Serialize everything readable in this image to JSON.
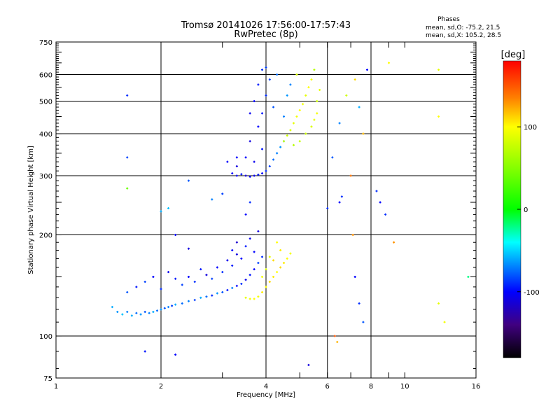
{
  "chart_data": {
    "type": "scatter",
    "title": "Tromsø 20141026 17:56:00-17:57:43",
    "subtitle": "RwPretec (8p)",
    "xlabel": "Frequency [MHz]",
    "ylabel": "Stationary phase Virtual Height [km]",
    "x_scale": "log2",
    "y_scale": "log",
    "xlim": [
      1,
      16
    ],
    "ylim": [
      75,
      750
    ],
    "x_ticks": [
      1,
      2,
      4,
      6,
      8,
      10,
      16
    ],
    "x_tick_labels": [
      "1",
      "2",
      "4",
      "6",
      "8",
      "10",
      "16"
    ],
    "x_minor_ticks": [
      3,
      5,
      7,
      9
    ],
    "y_ticks": [
      75,
      100,
      200,
      300,
      400,
      500,
      600,
      750
    ],
    "y_tick_labels": [
      "75",
      "100",
      "200",
      "300",
      "400",
      "500",
      "600",
      "750"
    ],
    "grid_x": [
      2,
      4,
      6,
      8
    ],
    "grid_y": [
      100,
      200,
      300,
      400,
      500,
      600
    ],
    "grid": true,
    "info": {
      "title": "Phases",
      "line_o": "mean, sd,O: -75.2, 21.5",
      "line_x": "mean, sd,X: 105.2, 28.5"
    },
    "colorbar": {
      "label": "[deg]",
      "range": [
        -180,
        180
      ],
      "ticks": [
        100,
        0,
        -100
      ],
      "tick_labels": [
        "100",
        "0",
        "-100"
      ],
      "colors": [
        "#ff0000",
        "#ff8000",
        "#ffff00",
        "#00ff00",
        "#00ffff",
        "#0080ff",
        "#0000ff",
        "#400080",
        "#000000"
      ]
    },
    "series": [
      {
        "description": "E/F1 trace (o-mode, blue)",
        "points": [
          [
            1.45,
            122,
            -60
          ],
          [
            1.5,
            118,
            -65
          ],
          [
            1.55,
            116,
            -55
          ],
          [
            1.6,
            118,
            -70
          ],
          [
            1.65,
            115,
            -60
          ],
          [
            1.7,
            117,
            -75
          ],
          [
            1.75,
            116,
            -65
          ],
          [
            1.8,
            118,
            -80
          ],
          [
            1.85,
            117,
            -70
          ],
          [
            1.9,
            118,
            -60
          ],
          [
            1.95,
            119,
            -75
          ],
          [
            2.0,
            120,
            -65
          ],
          [
            2.05,
            121,
            -80
          ],
          [
            2.1,
            122,
            -70
          ],
          [
            2.15,
            123,
            -85
          ],
          [
            2.2,
            124,
            -60
          ],
          [
            2.3,
            125,
            -75
          ],
          [
            2.4,
            127,
            -70
          ],
          [
            2.5,
            128,
            -85
          ],
          [
            2.6,
            130,
            -60
          ],
          [
            2.7,
            131,
            -75
          ],
          [
            2.8,
            132,
            -90
          ],
          [
            2.9,
            134,
            -65
          ],
          [
            3.0,
            135,
            -80
          ],
          [
            3.1,
            137,
            -95
          ],
          [
            3.2,
            139,
            -70
          ],
          [
            3.3,
            141,
            -100
          ],
          [
            3.4,
            143,
            -90
          ],
          [
            3.5,
            147,
            -105
          ],
          [
            3.6,
            152,
            -95
          ],
          [
            3.7,
            158,
            -100
          ],
          [
            3.8,
            165,
            -85
          ],
          [
            3.9,
            172,
            -90
          ],
          [
            1.6,
            135,
            -80
          ],
          [
            1.7,
            140,
            -95
          ],
          [
            1.8,
            145,
            -85
          ],
          [
            1.9,
            150,
            -100
          ],
          [
            2.0,
            138,
            -90
          ],
          [
            2.1,
            155,
            -105
          ],
          [
            2.2,
            148,
            -95
          ],
          [
            2.3,
            142,
            -85
          ],
          [
            2.4,
            150,
            -100
          ],
          [
            2.5,
            145,
            -90
          ],
          [
            2.6,
            158,
            -95
          ],
          [
            2.7,
            152,
            -110
          ],
          [
            2.8,
            148,
            -85
          ],
          [
            2.9,
            160,
            -100
          ],
          [
            3.0,
            155,
            -90
          ],
          [
            3.1,
            168,
            -105
          ],
          [
            3.2,
            162,
            -95
          ],
          [
            3.3,
            175,
            -110
          ],
          [
            3.4,
            170,
            -100
          ],
          [
            3.5,
            185,
            -95
          ],
          [
            3.6,
            195,
            -105
          ],
          [
            3.7,
            178,
            -100
          ],
          [
            3.8,
            205,
            -110
          ],
          [
            3.5,
            230,
            -100
          ],
          [
            3.6,
            250,
            -90
          ],
          [
            3.3,
            190,
            -115
          ],
          [
            3.2,
            180,
            -100
          ],
          [
            2.4,
            182,
            -110
          ],
          [
            2.2,
            200,
            -100
          ]
        ]
      },
      {
        "description": "E/F1 trace (x-mode, orange)",
        "points": [
          [
            3.5,
            130,
            90
          ],
          [
            3.6,
            129,
            95
          ],
          [
            3.7,
            129,
            100
          ],
          [
            3.8,
            131,
            95
          ],
          [
            3.9,
            135,
            105
          ],
          [
            4.0,
            140,
            100
          ],
          [
            4.1,
            145,
            110
          ],
          [
            4.2,
            150,
            105
          ],
          [
            4.3,
            155,
            100
          ],
          [
            4.4,
            160,
            110
          ],
          [
            4.5,
            165,
            105
          ],
          [
            4.6,
            170,
            100
          ],
          [
            4.7,
            176,
            95
          ],
          [
            4.2,
            168,
            110
          ],
          [
            4.4,
            180,
            105
          ],
          [
            3.9,
            150,
            95
          ],
          [
            4.0,
            158,
            85
          ],
          [
            4.1,
            172,
            90
          ],
          [
            4.3,
            190,
            100
          ]
        ]
      },
      {
        "description": "F2 trace (o-mode, blue)",
        "points": [
          [
            3.2,
            305,
            -100
          ],
          [
            3.3,
            300,
            -105
          ],
          [
            3.4,
            303,
            -95
          ],
          [
            3.5,
            300,
            -110
          ],
          [
            3.6,
            298,
            -100
          ],
          [
            3.7,
            300,
            -105
          ],
          [
            3.8,
            302,
            -95
          ],
          [
            3.9,
            305,
            -100
          ],
          [
            4.0,
            310,
            -90
          ],
          [
            4.1,
            320,
            -85
          ],
          [
            4.2,
            335,
            -75
          ],
          [
            4.3,
            350,
            -70
          ],
          [
            4.4,
            365,
            -65
          ],
          [
            4.5,
            380,
            -60
          ],
          [
            3.1,
            330,
            -100
          ],
          [
            3.3,
            320,
            -110
          ],
          [
            3.5,
            340,
            -100
          ],
          [
            3.7,
            330,
            -105
          ],
          [
            3.9,
            360,
            -95
          ],
          [
            3.6,
            380,
            -110
          ],
          [
            3.8,
            420,
            -100
          ],
          [
            3.9,
            460,
            -95
          ],
          [
            4.0,
            520,
            -90
          ],
          [
            4.1,
            580,
            -85
          ],
          [
            3.7,
            500,
            -100
          ],
          [
            3.8,
            560,
            -95
          ],
          [
            3.9,
            620,
            -90
          ],
          [
            4.0,
            630,
            -85
          ],
          [
            4.2,
            480,
            -80
          ],
          [
            4.3,
            600,
            -75
          ],
          [
            4.5,
            450,
            -70
          ],
          [
            4.6,
            520,
            -65
          ],
          [
            4.7,
            560,
            -70
          ],
          [
            2.0,
            235,
            -60
          ],
          [
            2.1,
            240,
            -55
          ],
          [
            2.4,
            290,
            -80
          ],
          [
            2.8,
            255,
            -70
          ],
          [
            3.0,
            265,
            -85
          ],
          [
            3.3,
            340,
            -100
          ],
          [
            3.6,
            460,
            -105
          ]
        ]
      },
      {
        "description": "F2 trace (x-mode, yellow/orange)",
        "points": [
          [
            4.5,
            380,
            75
          ],
          [
            4.6,
            395,
            80
          ],
          [
            4.7,
            410,
            85
          ],
          [
            4.8,
            430,
            90
          ],
          [
            4.9,
            450,
            95
          ],
          [
            5.0,
            470,
            100
          ],
          [
            5.1,
            490,
            95
          ],
          [
            5.2,
            520,
            90
          ],
          [
            5.3,
            550,
            100
          ],
          [
            5.4,
            580,
            95
          ],
          [
            4.8,
            370,
            70
          ],
          [
            5.0,
            380,
            75
          ],
          [
            5.2,
            400,
            80
          ],
          [
            5.4,
            420,
            85
          ],
          [
            5.5,
            440,
            90
          ],
          [
            5.6,
            460,
            95
          ],
          [
            5.6,
            500,
            80
          ],
          [
            5.7,
            540,
            90
          ],
          [
            5.5,
            620,
            70
          ],
          [
            4.9,
            600,
            85
          ]
        ]
      },
      {
        "description": "scattered echoes",
        "points": [
          [
            1.6,
            520,
            -90
          ],
          [
            1.6,
            340,
            -85
          ],
          [
            1.6,
            275,
            40
          ],
          [
            1.8,
            90,
            -95
          ],
          [
            2.2,
            88,
            -100
          ],
          [
            5.3,
            82,
            -110
          ],
          [
            6.3,
            100,
            150
          ],
          [
            6.4,
            96,
            120
          ],
          [
            6.5,
            250,
            -100
          ],
          [
            6.6,
            260,
            -90
          ],
          [
            7.0,
            300,
            140
          ],
          [
            7.1,
            200,
            130
          ],
          [
            7.2,
            150,
            -100
          ],
          [
            7.4,
            125,
            -90
          ],
          [
            7.6,
            110,
            -80
          ],
          [
            7.6,
            400,
            120
          ],
          [
            8.3,
            270,
            -90
          ],
          [
            8.5,
            250,
            -100
          ],
          [
            8.8,
            230,
            -90
          ],
          [
            9.3,
            190,
            130
          ],
          [
            12.5,
            620,
            90
          ],
          [
            12.5,
            450,
            100
          ],
          [
            12.5,
            125,
            90
          ],
          [
            13.0,
            110,
            95
          ],
          [
            15.2,
            150,
            -20
          ],
          [
            6.8,
            520,
            80
          ],
          [
            7.4,
            480,
            -60
          ],
          [
            7.2,
            580,
            110
          ],
          [
            9.0,
            650,
            100
          ],
          [
            7.8,
            620,
            -100
          ],
          [
            6.0,
            240,
            -90
          ],
          [
            6.2,
            340,
            -80
          ],
          [
            6.5,
            430,
            -70
          ]
        ]
      }
    ]
  }
}
